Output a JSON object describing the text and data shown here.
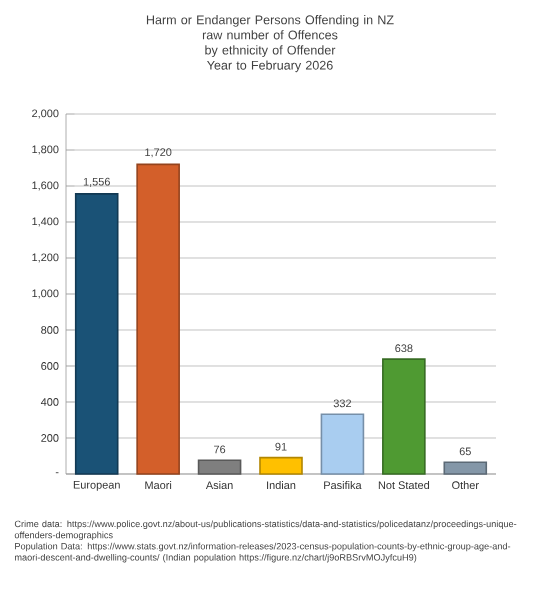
{
  "chart_data": {
    "type": "bar",
    "title": "Harm or Endanger Persons Offending in NZ",
    "subtitle": "raw number of Offences\nby ethnicity of Offender\nYear to February 2026",
    "categories": [
      "European",
      "Maori",
      "Asian",
      "Indian",
      "Pasifika",
      "Not Stated",
      "Other"
    ],
    "values": [
      1556,
      1720,
      76,
      91,
      332,
      638,
      65
    ],
    "value_labels": [
      "1,556",
      "1,720",
      "76",
      "91",
      "332",
      "638",
      "65"
    ],
    "colors": [
      "#1a5276",
      "#d35f2a",
      "#7f7f7f",
      "#ffc000",
      "#a9cdf0",
      "#4f9a32",
      "#8497a8"
    ],
    "ylim": [
      0,
      2000
    ],
    "yticks": [
      {
        "value": 0,
        "label": "-"
      },
      200,
      400,
      600,
      800,
      {
        "value": 1000,
        "label": "1,000"
      },
      {
        "value": 1200,
        "label": "1,200"
      },
      {
        "value": 1400,
        "label": "1,400"
      },
      {
        "value": 1600,
        "label": "1,600"
      },
      {
        "value": 1800,
        "label": "1,800"
      },
      {
        "value": 2000,
        "label": "2,000"
      }
    ],
    "grid": "y",
    "annotations": [
      "Crime data: https://www.police.govt.nz/about-us/publications-statistics/data-and-statistics/policedatanz/proceedings-unique-offenders-demographics",
      "Population Data: https://www.stats.govt.nz/information-releases/2023-census-population-counts-by-ethnic-group-age-and-maori-descent-and-dwelling-counts/ (Indian population https://figure.nz/chart/j9oRBSrvMOJyfcuH9)"
    ]
  }
}
